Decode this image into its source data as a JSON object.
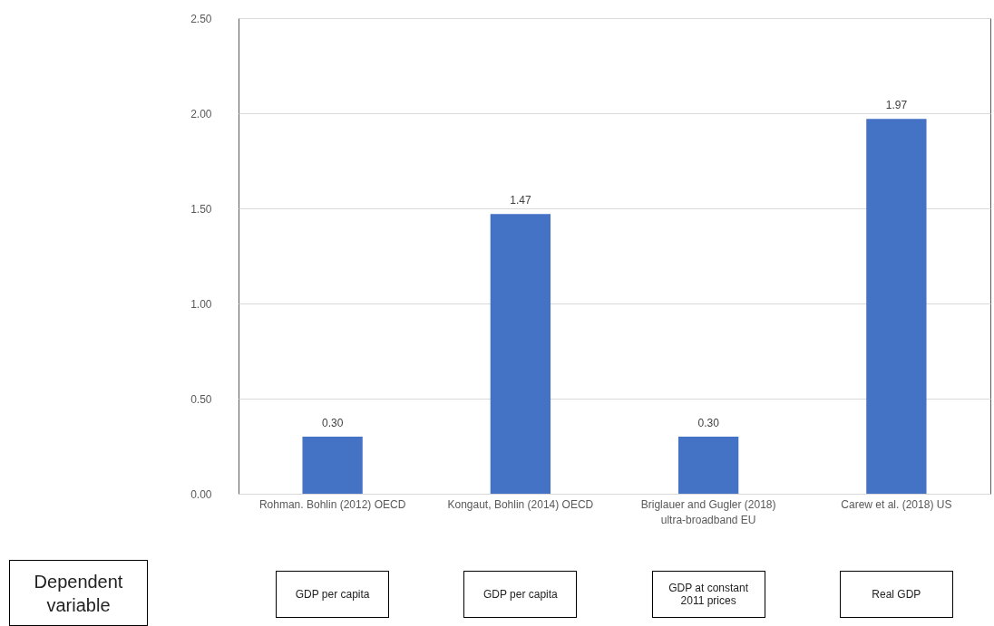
{
  "chart_data": {
    "type": "bar",
    "categories": [
      "Rohman. Bohlin (2012) OECD",
      "Kongaut, Bohlin (2014) OECD",
      "Briglauer and Gugler (2018) ultra-broadband EU",
      "Carew et al. (2018) US"
    ],
    "values": [
      0.3,
      1.47,
      0.3,
      1.97
    ],
    "value_labels": [
      "0.30",
      "1.47",
      "0.30",
      "1.97"
    ],
    "color": "#4472c4",
    "ylim": [
      0,
      2.5
    ],
    "yticks": [
      {
        "value": 0,
        "label": "0.00"
      },
      {
        "value": 0.5,
        "label": "0.50"
      },
      {
        "value": 1,
        "label": "1.00"
      },
      {
        "value": 1.5,
        "label": "1.50"
      },
      {
        "value": 2,
        "label": "2.00"
      },
      {
        "value": 2.5,
        "label": "2.50"
      }
    ],
    "grid": "y",
    "annotations": [
      "Dependent variable",
      "GDP per capita",
      "GDP per capita",
      "GDP at constant 2011 prices",
      "Real GDP"
    ]
  }
}
